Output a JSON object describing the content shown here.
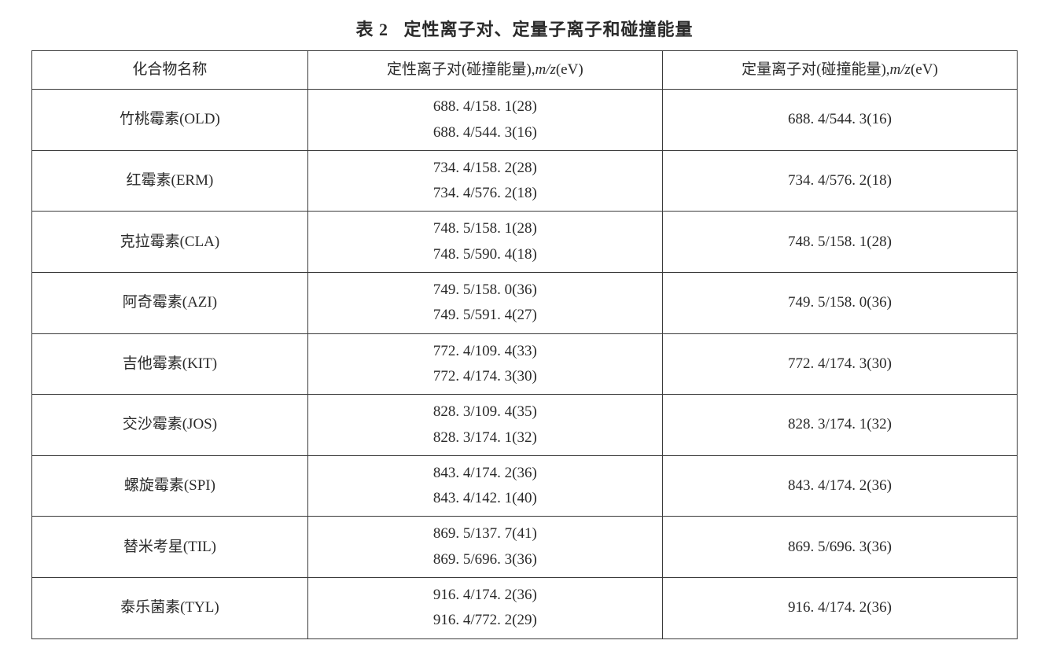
{
  "caption_prefix": "表 2",
  "caption_body": "定性离子对、定量子离子和碰撞能量",
  "headers": {
    "name": "化合物名称",
    "qual_prefix": "定性离子对(碰撞能量),",
    "quant_prefix": "定量离子对(碰撞能量),",
    "mz_label": "m/z",
    "unit_suffix": "(eV)"
  },
  "rows": [
    {
      "name": "竹桃霉素(OLD)",
      "qual1": "688. 4/158. 1(28)",
      "qual2": "688. 4/544. 3(16)",
      "quant": "688. 4/544. 3(16)"
    },
    {
      "name": "红霉素(ERM)",
      "qual1": "734. 4/158. 2(28)",
      "qual2": "734. 4/576. 2(18)",
      "quant": "734. 4/576. 2(18)"
    },
    {
      "name": "克拉霉素(CLA)",
      "qual1": "748. 5/158. 1(28)",
      "qual2": "748. 5/590. 4(18)",
      "quant": "748. 5/158. 1(28)"
    },
    {
      "name": "阿奇霉素(AZI)",
      "qual1": "749. 5/158. 0(36)",
      "qual2": "749. 5/591. 4(27)",
      "quant": "749. 5/158. 0(36)"
    },
    {
      "name": "吉他霉素(KIT)",
      "qual1": "772. 4/109. 4(33)",
      "qual2": "772. 4/174. 3(30)",
      "quant": "772. 4/174. 3(30)"
    },
    {
      "name": "交沙霉素(JOS)",
      "qual1": "828. 3/109. 4(35)",
      "qual2": "828. 3/174. 1(32)",
      "quant": "828. 3/174. 1(32)"
    },
    {
      "name": "螺旋霉素(SPI)",
      "qual1": "843. 4/174. 2(36)",
      "qual2": "843. 4/142. 1(40)",
      "quant": "843. 4/174. 2(36)"
    },
    {
      "name": "替米考星(TIL)",
      "qual1": "869. 5/137. 7(41)",
      "qual2": "869. 5/696. 3(36)",
      "quant": "869. 5/696. 3(36)"
    },
    {
      "name": "泰乐菌素(TYL)",
      "qual1": "916. 4/174. 2(36)",
      "qual2": "916. 4/772. 2(29)",
      "quant": "916. 4/174. 2(36)"
    }
  ],
  "style": {
    "background": "#ffffff",
    "text_color": "#2a2a2a",
    "border_color": "#3a3a3a",
    "caption_fontsize": 22,
    "cell_fontsize": 19
  }
}
